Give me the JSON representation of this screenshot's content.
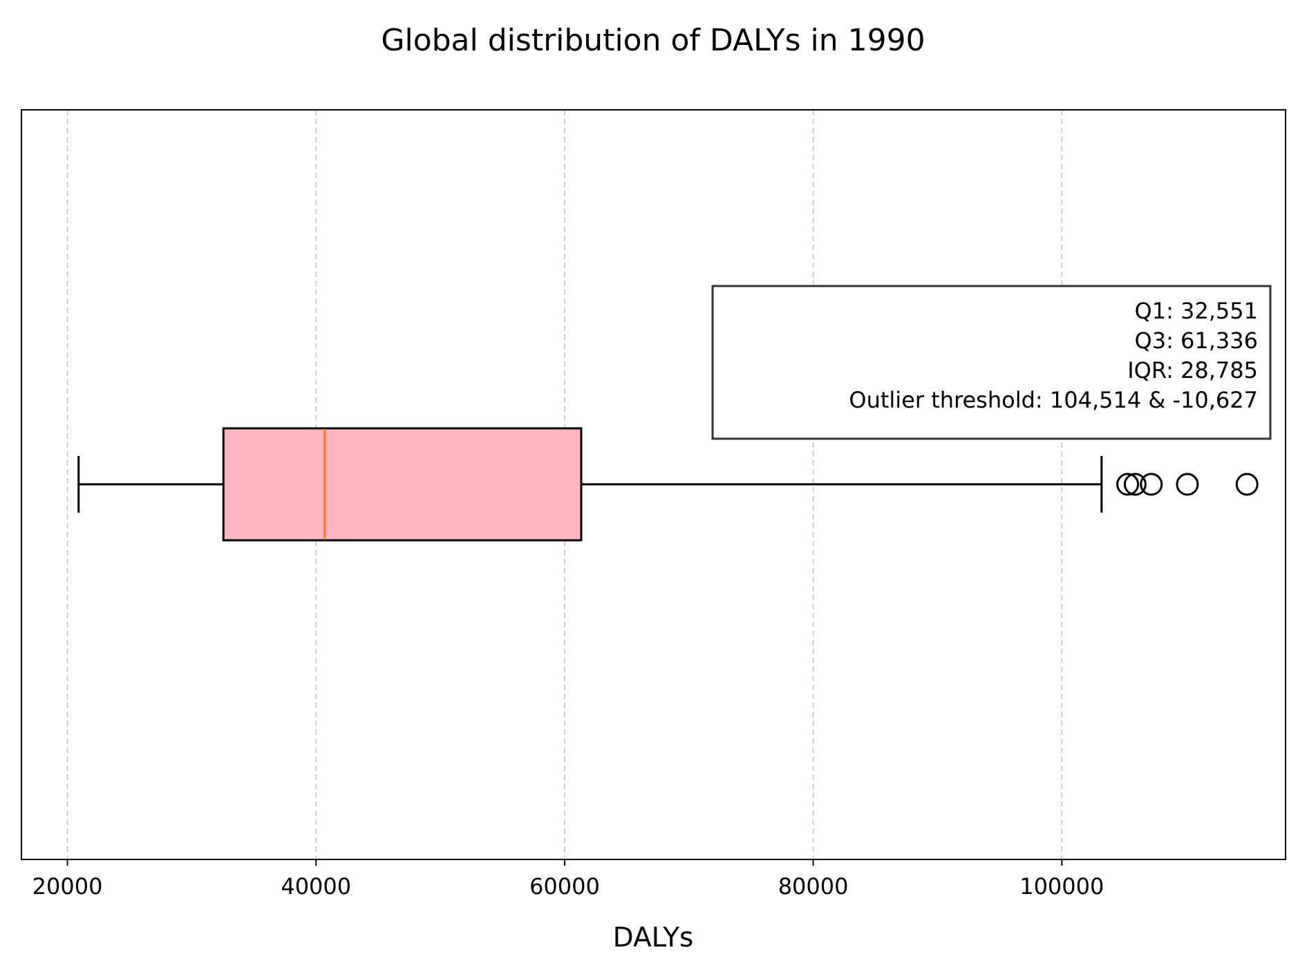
{
  "chart_data": {
    "type": "box",
    "orientation": "horizontal",
    "title": "Global distribution of DALYs in 1990",
    "xlabel": "DALYs",
    "ylabel": "",
    "xlim": [
      16300,
      118000
    ],
    "xticks": [
      20000,
      40000,
      60000,
      80000,
      100000
    ],
    "xtick_labels": [
      "20000",
      "40000",
      "60000",
      "80000",
      "100000"
    ],
    "grid": {
      "x": true,
      "y": false,
      "style": "dashed"
    },
    "box": {
      "whisker_low": 20900,
      "q1": 32551,
      "median": 40700,
      "q3": 61336,
      "whisker_high": 103200,
      "outliers": [
        105300,
        105900,
        107200,
        110100,
        114900
      ],
      "fill_color": "#ffb6c1",
      "median_color": "#ff7f0e"
    },
    "annotation": {
      "lines": [
        "Q1: 32,551",
        "Q3: 61,336",
        "IQR: 28,785",
        "Outlier threshold: 104,514 & -10,627"
      ],
      "placement": "right"
    }
  }
}
